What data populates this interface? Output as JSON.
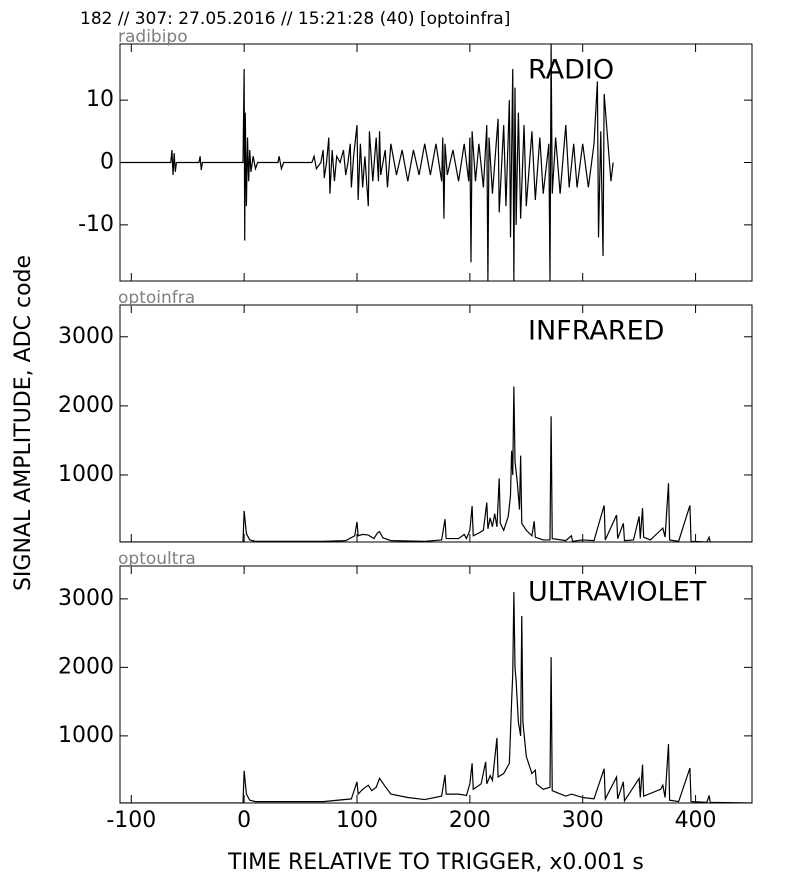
{
  "header": "182 // 307:   27.05.2016 // 15:21:28 (40)  [optoinfra]",
  "ylabel": "SIGNAL AMPLITUDE,  ADC code",
  "chart_data": [
    {
      "type": "line",
      "label": "radibipo",
      "annotation": "RADIO",
      "color": "#000000",
      "xlim": [
        -110,
        450
      ],
      "xticks": [
        -100,
        0,
        100,
        200,
        300,
        400
      ],
      "ylim": [
        -19,
        19
      ],
      "yticks": [
        -10,
        0,
        10
      ],
      "x": [
        -110,
        -65,
        -64,
        -63,
        -62,
        -61,
        -60,
        -40,
        -39,
        -38,
        -37,
        -1,
        0,
        0.5,
        1,
        2,
        3,
        4,
        5,
        6,
        8,
        10,
        12,
        30,
        31,
        33,
        35,
        60,
        62,
        64,
        68,
        70,
        71,
        73,
        75,
        76,
        78,
        80,
        82,
        85,
        88,
        90,
        92,
        94,
        95,
        97,
        100,
        101,
        103,
        105,
        107,
        110,
        111,
        114,
        117,
        119,
        120,
        121,
        125,
        127,
        130,
        135,
        140,
        145,
        150,
        155,
        160,
        165,
        170,
        175,
        176,
        177,
        178,
        180,
        185,
        190,
        195,
        199,
        200,
        201,
        202,
        205,
        208,
        212,
        215,
        216,
        217,
        220,
        225,
        226,
        230,
        232,
        235,
        236,
        238,
        239,
        240,
        241,
        243,
        245,
        248,
        250,
        255,
        258,
        262,
        265,
        270,
        271,
        272,
        273,
        276,
        280,
        285,
        288,
        292,
        295,
        300,
        305,
        310,
        313,
        314,
        316,
        318,
        319,
        322,
        325,
        327
      ],
      "values": [
        0,
        0,
        2,
        -2,
        1.5,
        -1.5,
        0,
        0,
        1,
        -1.2,
        0,
        0,
        15,
        -12.5,
        8,
        -7,
        4,
        -3,
        2,
        -1.5,
        1,
        -1,
        0,
        0,
        1,
        -1,
        0,
        0,
        1,
        -1,
        0,
        2,
        -2.5,
        0,
        4,
        -5,
        2,
        -3,
        1,
        0,
        2,
        -2,
        0,
        3,
        -4,
        1,
        6,
        -6,
        3,
        -4,
        1,
        -7,
        5,
        -3,
        4,
        -3,
        5,
        -2,
        2,
        -4,
        3,
        -2,
        2,
        -3,
        2,
        -2,
        3,
        -2,
        3,
        -3,
        4,
        -9,
        3,
        -2,
        2,
        -3,
        3,
        -3,
        4,
        -16,
        5,
        -3,
        3,
        -4,
        6,
        -19,
        4,
        -5,
        7,
        -8,
        6,
        -7,
        10,
        -12,
        15,
        -19,
        12,
        -10,
        8,
        -9,
        6,
        -7,
        5,
        -6,
        4,
        -5,
        3,
        -19,
        19,
        -5,
        4,
        -5,
        6,
        -4,
        3,
        -4,
        3,
        -4,
        3,
        13,
        -12,
        5,
        -15,
        11,
        4,
        -3,
        0
      ]
    },
    {
      "type": "line",
      "label": "optoinfra",
      "annotation": "INFRARED",
      "color": "#000000",
      "xlim": [
        -110,
        450
      ],
      "xticks": [
        -100,
        0,
        100,
        200,
        300,
        400
      ],
      "ylim": [
        30,
        3460
      ],
      "yticks": [
        1000,
        2000,
        3000
      ],
      "x": [
        -110,
        -1,
        0,
        2,
        5,
        10,
        70,
        90,
        98,
        100,
        101,
        105,
        110,
        115,
        118,
        120,
        123,
        130,
        160,
        175,
        178,
        179,
        190,
        195,
        197,
        200,
        202,
        203,
        208,
        212,
        215,
        216,
        218,
        220,
        222,
        224,
        226,
        227,
        230,
        234,
        236,
        237,
        238,
        239,
        240,
        242,
        244,
        245,
        246,
        250,
        255,
        257,
        258,
        265,
        271,
        272,
        273,
        285,
        290,
        291,
        300,
        310,
        319,
        320,
        330,
        331,
        336,
        337,
        345,
        350,
        351,
        353,
        354,
        360,
        369,
        371,
        373,
        376,
        377,
        385,
        395,
        396,
        410,
        412,
        413,
        450
      ],
      "values": [
        30,
        30,
        480,
        150,
        60,
        40,
        40,
        50,
        120,
        320,
        120,
        140,
        130,
        80,
        160,
        180,
        90,
        50,
        40,
        60,
        360,
        80,
        80,
        140,
        80,
        200,
        550,
        120,
        160,
        200,
        600,
        220,
        380,
        250,
        440,
        250,
        950,
        300,
        200,
        400,
        700,
        1350,
        1000,
        2280,
        1200,
        900,
        500,
        1280,
        300,
        200,
        120,
        330,
        100,
        60,
        60,
        1850,
        80,
        50,
        120,
        40,
        60,
        50,
        560,
        60,
        420,
        80,
        300,
        50,
        60,
        400,
        80,
        520,
        100,
        60,
        200,
        230,
        100,
        880,
        60,
        40,
        560,
        40,
        30,
        100,
        30,
        30
      ]
    },
    {
      "type": "line",
      "label": "optoultra",
      "annotation": "ULTRAVIOLET",
      "color": "#000000",
      "xlabel": "TIME RELATIVE TO TRIGGER,   x0.001 s",
      "xlim": [
        -110,
        450
      ],
      "xticks": [
        -100,
        0,
        100,
        200,
        300,
        400
      ],
      "ylim": [
        20,
        3480
      ],
      "yticks": [
        1000,
        2000,
        3000
      ],
      "x": [
        -110,
        -1,
        0,
        2,
        5,
        10,
        70,
        95,
        100,
        101,
        105,
        110,
        113,
        117,
        120,
        125,
        130,
        145,
        160,
        175,
        178,
        179,
        190,
        197,
        200,
        202,
        203,
        210,
        214,
        215,
        218,
        220,
        224,
        225,
        230,
        235,
        237,
        238,
        239,
        240,
        241,
        243,
        245,
        246,
        247,
        250,
        255,
        258,
        259,
        265,
        271,
        272,
        273,
        285,
        290,
        300,
        310,
        319,
        320,
        330,
        331,
        336,
        337,
        350,
        351,
        353,
        354,
        369,
        371,
        373,
        376,
        377,
        385,
        395,
        396,
        410,
        412,
        413,
        450
      ],
      "values": [
        20,
        20,
        490,
        150,
        60,
        40,
        40,
        80,
        330,
        150,
        220,
        280,
        200,
        250,
        380,
        260,
        150,
        100,
        70,
        120,
        430,
        150,
        150,
        130,
        300,
        600,
        220,
        300,
        620,
        300,
        420,
        350,
        970,
        400,
        450,
        600,
        1500,
        1900,
        3100,
        2000,
        1800,
        1200,
        1000,
        2750,
        1200,
        700,
        450,
        500,
        300,
        220,
        250,
        2150,
        200,
        120,
        150,
        100,
        80,
        520,
        80,
        400,
        80,
        330,
        50,
        380,
        100,
        580,
        120,
        220,
        280,
        100,
        880,
        60,
        40,
        530,
        40,
        30,
        130,
        30,
        20
      ]
    }
  ]
}
